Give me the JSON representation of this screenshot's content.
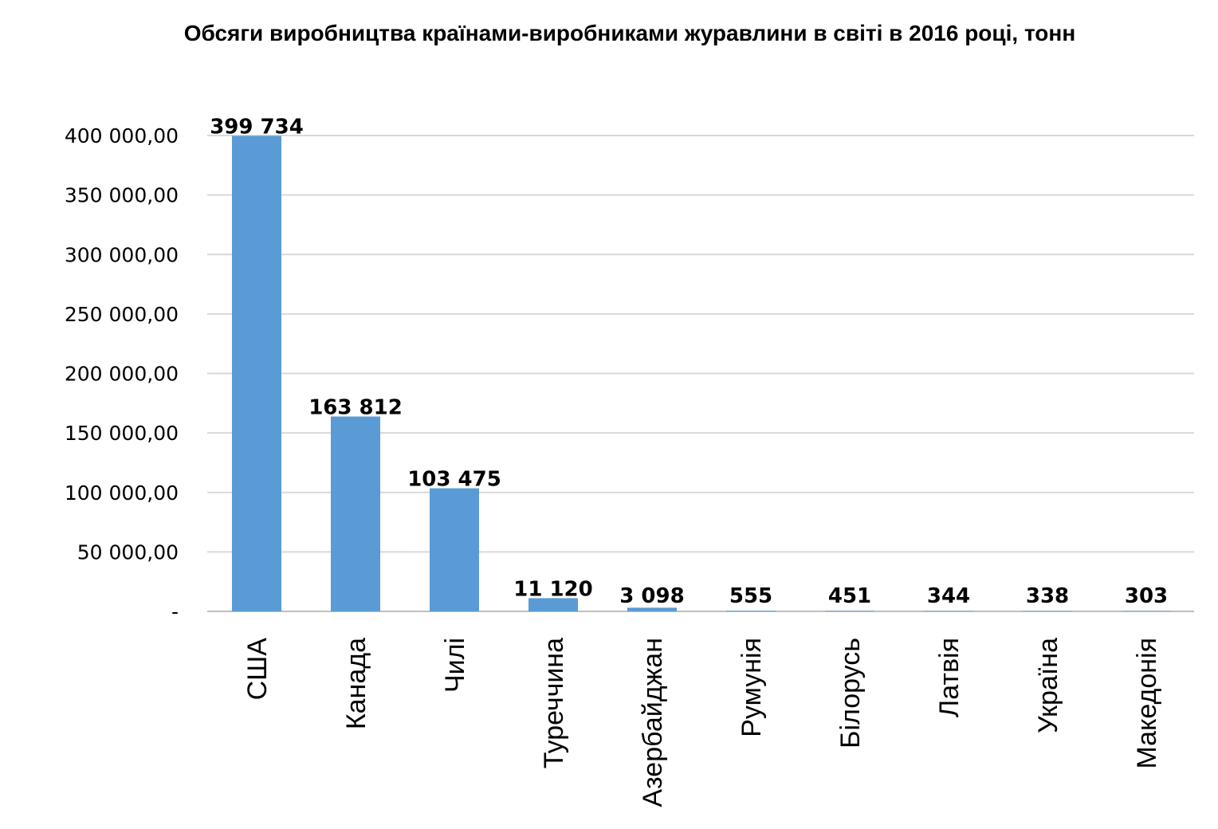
{
  "chart_data": {
    "type": "bar",
    "title": "Обсяги виробництва країнами-виробниками журавлини в світі в 2016 році, тонн",
    "xlabel": "",
    "ylabel": "",
    "categories": [
      "США",
      "Канада",
      "Чилі",
      "Туреччина",
      "Азербайджан",
      "Румунія",
      "Білорусь",
      "Латвія",
      "Україна",
      "Македонія"
    ],
    "values": [
      399734,
      163812,
      103475,
      11120,
      3098,
      555,
      451,
      344,
      338,
      303
    ],
    "data_labels": [
      "399 734",
      "163 812",
      "103 475",
      "11 120",
      "3 098",
      "555",
      "451",
      "344",
      "338",
      "303"
    ],
    "ylim": [
      0,
      400000
    ],
    "yticks": [
      0,
      50000,
      100000,
      150000,
      200000,
      250000,
      300000,
      350000,
      400000
    ],
    "ytick_labels": [
      "-",
      "50 000,00",
      "100 000,00",
      "150 000,00",
      "200 000,00",
      "250 000,00",
      "300 000,00",
      "350 000,00",
      "400 000,00"
    ],
    "grid": true,
    "legend": "none",
    "bar_color": "#5B9BD5",
    "grid_color": "#D9D9D9"
  }
}
